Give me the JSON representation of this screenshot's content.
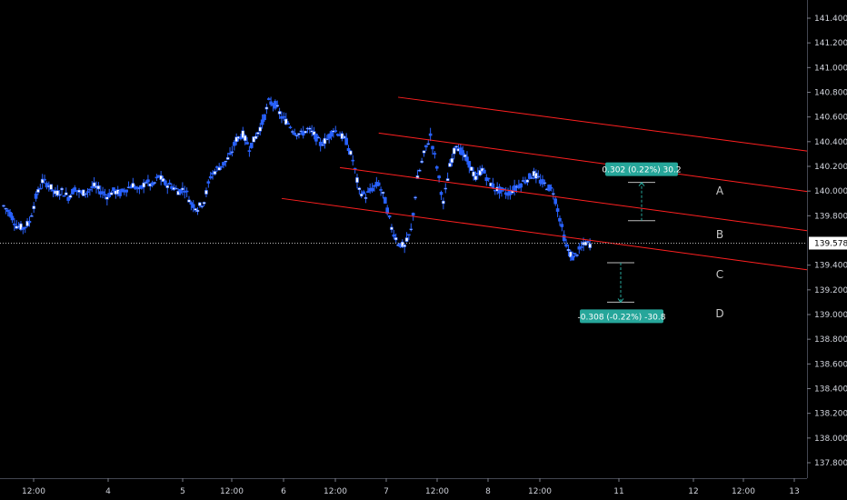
{
  "chart_data": {
    "type": "candlestick",
    "y_axis": {
      "min": 137.7,
      "max": 141.5,
      "ticks": [
        "141.400",
        "141.200",
        "141.000",
        "140.800",
        "140.600",
        "140.400",
        "140.200",
        "140.000",
        "139.800",
        "139.400",
        "139.200",
        "139.000",
        "138.800",
        "138.600",
        "138.400",
        "138.200",
        "138.000",
        "137.800"
      ]
    },
    "x_axis": {
      "ticks": [
        {
          "label": "12:00",
          "t": 0
        },
        {
          "label": "4",
          "t": 12
        },
        {
          "label": "5",
          "t": 24
        },
        {
          "label": "12:00",
          "t": 36
        },
        {
          "label": "6",
          "t": 48
        },
        {
          "label": "12:00",
          "t": 60
        },
        {
          "label": "7",
          "t": 72
        },
        {
          "label": "12:00",
          "t": 84
        },
        {
          "label": "8",
          "t": 96
        },
        {
          "label": "12:00",
          "t": 108
        },
        {
          "label": "11",
          "t": 120
        },
        {
          "label": "12",
          "t": 132
        },
        {
          "label": "12:00",
          "t": 144
        },
        {
          "label": "13",
          "t": 156
        }
      ]
    },
    "current_price": {
      "value": 139.578,
      "label": "139.578"
    },
    "candle_color": "#2962ff",
    "candle_up_color": "#ffffff",
    "candles_close_path": [
      [
        -4,
        139.88
      ],
      [
        -3,
        139.82
      ],
      [
        -2,
        139.72
      ],
      [
        -1,
        139.7
      ],
      [
        0,
        139.75
      ],
      [
        1,
        139.95
      ],
      [
        2,
        140.08
      ],
      [
        3,
        140.05
      ],
      [
        4,
        139.98
      ],
      [
        5,
        140.0
      ],
      [
        6,
        139.95
      ],
      [
        7,
        140.02
      ],
      [
        8,
        139.98
      ],
      [
        9,
        140.0
      ],
      [
        10,
        140.04
      ],
      [
        11,
        140.0
      ],
      [
        12,
        139.96
      ],
      [
        13,
        140.0
      ],
      [
        14,
        139.98
      ],
      [
        15,
        140.02
      ],
      [
        16,
        140.05
      ],
      [
        17,
        140.0
      ],
      [
        18,
        140.08
      ],
      [
        19,
        140.04
      ],
      [
        20,
        140.12
      ],
      [
        21,
        140.06
      ],
      [
        22,
        140.04
      ],
      [
        23,
        140.0
      ],
      [
        24,
        140.02
      ],
      [
        25,
        139.9
      ],
      [
        26,
        139.86
      ],
      [
        27,
        139.92
      ],
      [
        28,
        140.12
      ],
      [
        29,
        140.18
      ],
      [
        30,
        140.22
      ],
      [
        31,
        140.28
      ],
      [
        32,
        140.42
      ],
      [
        33,
        140.46
      ],
      [
        34,
        140.35
      ],
      [
        35,
        140.44
      ],
      [
        36,
        140.55
      ],
      [
        37,
        140.72
      ],
      [
        38,
        140.7
      ],
      [
        39,
        140.6
      ],
      [
        40,
        140.55
      ],
      [
        41,
        140.48
      ],
      [
        42,
        140.46
      ],
      [
        43,
        140.5
      ],
      [
        44,
        140.46
      ],
      [
        45,
        140.38
      ],
      [
        46,
        140.42
      ],
      [
        47,
        140.5
      ],
      [
        48,
        140.46
      ],
      [
        49,
        140.4
      ],
      [
        50,
        140.25
      ],
      [
        51,
        140.0
      ],
      [
        52,
        139.96
      ],
      [
        53,
        140.02
      ],
      [
        54,
        140.06
      ],
      [
        55,
        139.92
      ],
      [
        56,
        139.7
      ],
      [
        57,
        139.58
      ],
      [
        58,
        139.55
      ],
      [
        59,
        139.68
      ],
      [
        60,
        140.1
      ],
      [
        61,
        140.3
      ],
      [
        62,
        140.45
      ],
      [
        63,
        140.2
      ],
      [
        64,
        139.9
      ],
      [
        65,
        140.2
      ],
      [
        66,
        140.38
      ],
      [
        67,
        140.3
      ],
      [
        68,
        140.22
      ],
      [
        69,
        140.1
      ],
      [
        70,
        140.18
      ],
      [
        71,
        140.08
      ],
      [
        72,
        140.02
      ],
      [
        73,
        140.0
      ],
      [
        74,
        139.98
      ],
      [
        75,
        140.02
      ],
      [
        76,
        140.06
      ],
      [
        77,
        140.1
      ],
      [
        78,
        140.14
      ],
      [
        79,
        140.08
      ],
      [
        80,
        140.04
      ],
      [
        81,
        140.0
      ],
      [
        82,
        139.78
      ],
      [
        83,
        139.55
      ],
      [
        84,
        139.46
      ],
      [
        85,
        139.52
      ],
      [
        86,
        139.58
      ],
      [
        87,
        139.56
      ]
    ],
    "parallel_channel": {
      "color": "#ff2020",
      "lines": [
        {
          "label": "A",
          "start": [
            57,
            140.76
          ],
          "end": [
            205,
            139.74
          ]
        },
        {
          "label": "B",
          "start": [
            54,
            140.47
          ],
          "end": [
            205,
            139.39
          ]
        },
        {
          "label": "C",
          "start": [
            48,
            140.19
          ],
          "end": [
            205,
            139.08
          ]
        },
        {
          "label": "D",
          "start": [
            39,
            139.94
          ],
          "end": [
            205,
            138.76
          ]
        }
      ]
    },
    "measurements": [
      {
        "label": "0.302 (0.22%) 30.2",
        "from": 139.76,
        "to": 140.07,
        "t": 93
      },
      {
        "label": "-0.308 (-0.22%) -30.8",
        "from": 139.42,
        "to": 139.1,
        "t": 88
      }
    ],
    "measure_color": "#26a69a"
  }
}
